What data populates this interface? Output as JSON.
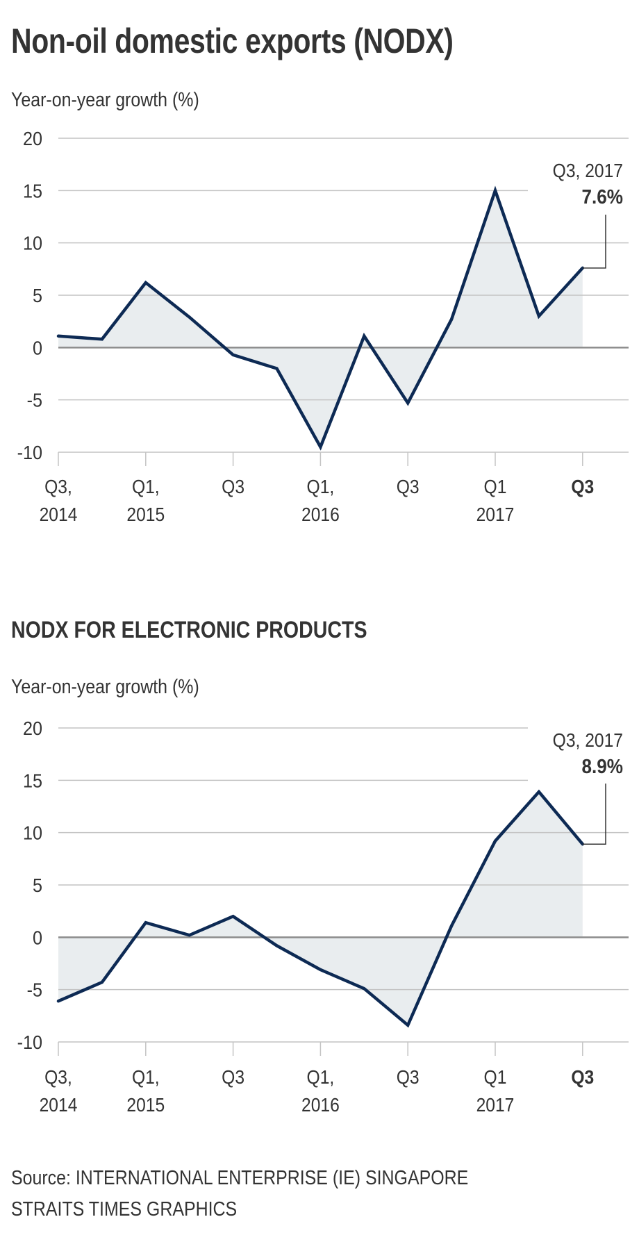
{
  "header": {
    "title": "Non-oil domestic exports (NODX)"
  },
  "footer": {
    "source": "Source: INTERNATIONAL ENTERPRISE (IE) SINGAPORE",
    "credit": "STRAITS TIMES GRAPHICS"
  },
  "colors": {
    "line": "#0d2a54",
    "fill": "#e9edef",
    "grid": "#c4c4c4",
    "zero_line": "#8c8c8c",
    "text": "#333333"
  },
  "chart_data": [
    {
      "type": "area",
      "title": "Non-oil domestic exports (NODX)",
      "ylabel": "Year-on-year growth (%)",
      "xlabel": "",
      "ylim": [
        -10,
        20
      ],
      "yticks": [
        20,
        15,
        10,
        5,
        0,
        -5,
        -10
      ],
      "grid": true,
      "x": [
        "Q3 2014",
        "Q4 2014",
        "Q1 2015",
        "Q2 2015",
        "Q3 2015",
        "Q4 2015",
        "Q1 2016",
        "Q2 2016",
        "Q3 2016",
        "Q4 2016",
        "Q1 2017",
        "Q2 2017",
        "Q3 2017"
      ],
      "xtick_labels": [
        {
          "index": 0,
          "line1": "Q3,",
          "line2": "2014",
          "bold": false
        },
        {
          "index": 2,
          "line1": "Q1,",
          "line2": "2015",
          "bold": false
        },
        {
          "index": 4,
          "line1": "Q3",
          "line2": "",
          "bold": false
        },
        {
          "index": 6,
          "line1": "Q1,",
          "line2": "2016",
          "bold": false
        },
        {
          "index": 8,
          "line1": "Q3",
          "line2": "",
          "bold": false
        },
        {
          "index": 10,
          "line1": "Q1",
          "line2": "2017",
          "bold": false
        },
        {
          "index": 12,
          "line1": "Q3",
          "line2": "",
          "bold": true
        }
      ],
      "series": [
        {
          "name": "NODX",
          "values": [
            1.1,
            0.8,
            6.2,
            2.9,
            -0.7,
            -2.0,
            -9.5,
            1.1,
            -5.3,
            2.7,
            15.0,
            3.0,
            7.6
          ]
        }
      ],
      "annotation": {
        "index": 12,
        "label": "Q3, 2017",
        "value_label": "7.6%"
      }
    },
    {
      "type": "area",
      "title": "NODX FOR ELECTRONIC PRODUCTS",
      "ylabel": "Year-on-year growth (%)",
      "xlabel": "",
      "ylim": [
        -10,
        20
      ],
      "yticks": [
        20,
        15,
        10,
        5,
        0,
        -5,
        -10
      ],
      "grid": true,
      "x": [
        "Q3 2014",
        "Q4 2014",
        "Q1 2015",
        "Q2 2015",
        "Q3 2015",
        "Q4 2015",
        "Q1 2016",
        "Q2 2016",
        "Q3 2016",
        "Q4 2016",
        "Q1 2017",
        "Q2 2017",
        "Q3 2017"
      ],
      "xtick_labels": [
        {
          "index": 0,
          "line1": "Q3,",
          "line2": "2014",
          "bold": false
        },
        {
          "index": 2,
          "line1": "Q1,",
          "line2": "2015",
          "bold": false
        },
        {
          "index": 4,
          "line1": "Q3",
          "line2": "",
          "bold": false
        },
        {
          "index": 6,
          "line1": "Q1,",
          "line2": "2016",
          "bold": false
        },
        {
          "index": 8,
          "line1": "Q3",
          "line2": "",
          "bold": false
        },
        {
          "index": 10,
          "line1": "Q1",
          "line2": "2017",
          "bold": false
        },
        {
          "index": 12,
          "line1": "Q3",
          "line2": "",
          "bold": true
        }
      ],
      "series": [
        {
          "name": "NODX electronics",
          "values": [
            -6.1,
            -4.3,
            1.4,
            0.2,
            2.0,
            -0.8,
            -3.1,
            -4.9,
            -8.4,
            1.1,
            9.2,
            13.9,
            8.9
          ]
        }
      ],
      "annotation": {
        "index": 12,
        "label": "Q3, 2017",
        "value_label": "8.9%"
      }
    }
  ]
}
